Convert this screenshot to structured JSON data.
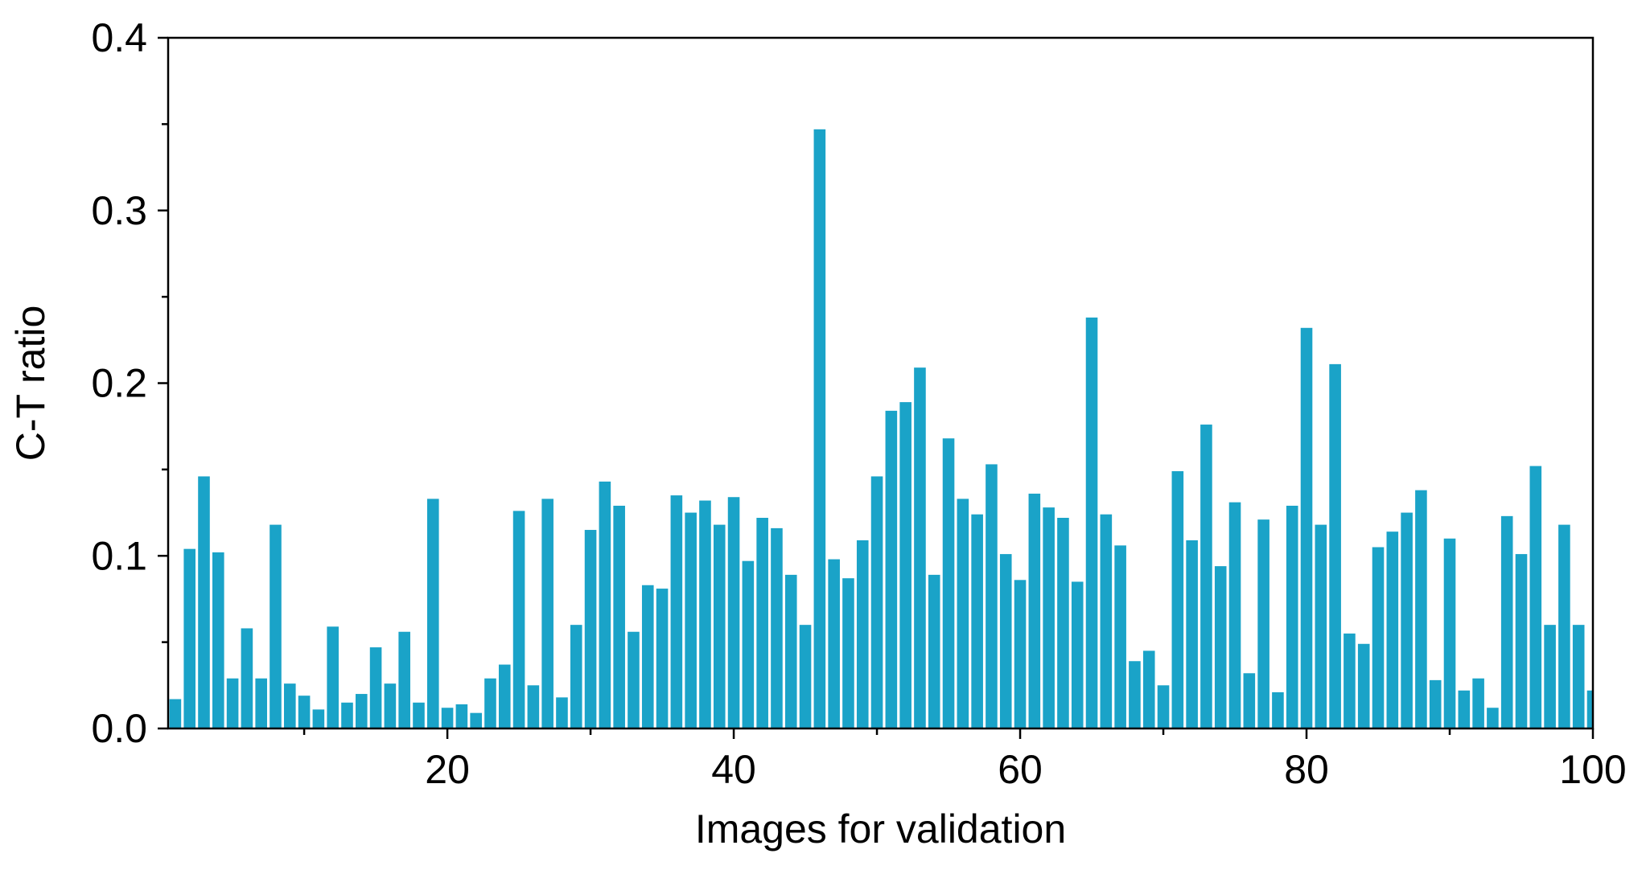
{
  "chart_data": {
    "type": "bar",
    "title": "",
    "xlabel": "Images for validation",
    "ylabel": "C-T ratio",
    "xlim": [
      0.5,
      100
    ],
    "ylim": [
      0,
      0.4
    ],
    "xticks": [
      20,
      40,
      60,
      80,
      100
    ],
    "xtick_labels": [
      "20",
      "40",
      "60",
      "80",
      "100"
    ],
    "yticks": [
      0.0,
      0.1,
      0.2,
      0.3,
      0.4
    ],
    "ytick_labels": [
      "0.0",
      "0.1",
      "0.2",
      "0.3",
      "0.4"
    ],
    "grid": false,
    "legend": "none",
    "bar_color": "#1aa3c8",
    "categories": [
      1,
      2,
      3,
      4,
      5,
      6,
      7,
      8,
      9,
      10,
      11,
      12,
      13,
      14,
      15,
      16,
      17,
      18,
      19,
      20,
      21,
      22,
      23,
      24,
      25,
      26,
      27,
      28,
      29,
      30,
      31,
      32,
      33,
      34,
      35,
      36,
      37,
      38,
      39,
      40,
      41,
      42,
      43,
      44,
      45,
      46,
      47,
      48,
      49,
      50,
      51,
      52,
      53,
      54,
      55,
      56,
      57,
      58,
      59,
      60,
      61,
      62,
      63,
      64,
      65,
      66,
      67,
      68,
      69,
      70,
      71,
      72,
      73,
      74,
      75,
      76,
      77,
      78,
      79,
      80,
      81,
      82,
      83,
      84,
      85,
      86,
      87,
      88,
      89,
      90,
      91,
      92,
      93,
      94,
      95,
      96,
      97,
      98,
      99,
      100
    ],
    "values": [
      0.017,
      0.104,
      0.146,
      0.102,
      0.029,
      0.058,
      0.029,
      0.118,
      0.026,
      0.019,
      0.011,
      0.059,
      0.015,
      0.02,
      0.047,
      0.026,
      0.056,
      0.015,
      0.133,
      0.012,
      0.014,
      0.009,
      0.029,
      0.037,
      0.126,
      0.025,
      0.133,
      0.018,
      0.06,
      0.115,
      0.143,
      0.129,
      0.056,
      0.083,
      0.081,
      0.135,
      0.125,
      0.132,
      0.118,
      0.134,
      0.097,
      0.122,
      0.116,
      0.089,
      0.06,
      0.347,
      0.098,
      0.087,
      0.109,
      0.146,
      0.184,
      0.189,
      0.209,
      0.089,
      0.168,
      0.133,
      0.124,
      0.153,
      0.101,
      0.086,
      0.136,
      0.128,
      0.122,
      0.085,
      0.238,
      0.124,
      0.106,
      0.039,
      0.045,
      0.025,
      0.149,
      0.109,
      0.176,
      0.094,
      0.131,
      0.032,
      0.121,
      0.021,
      0.129,
      0.232,
      0.118,
      0.211,
      0.055,
      0.049,
      0.105,
      0.114,
      0.125,
      0.138,
      0.028,
      0.11,
      0.022,
      0.029,
      0.012,
      0.123,
      0.101,
      0.152,
      0.06,
      0.118,
      0.06,
      0.022
    ]
  }
}
